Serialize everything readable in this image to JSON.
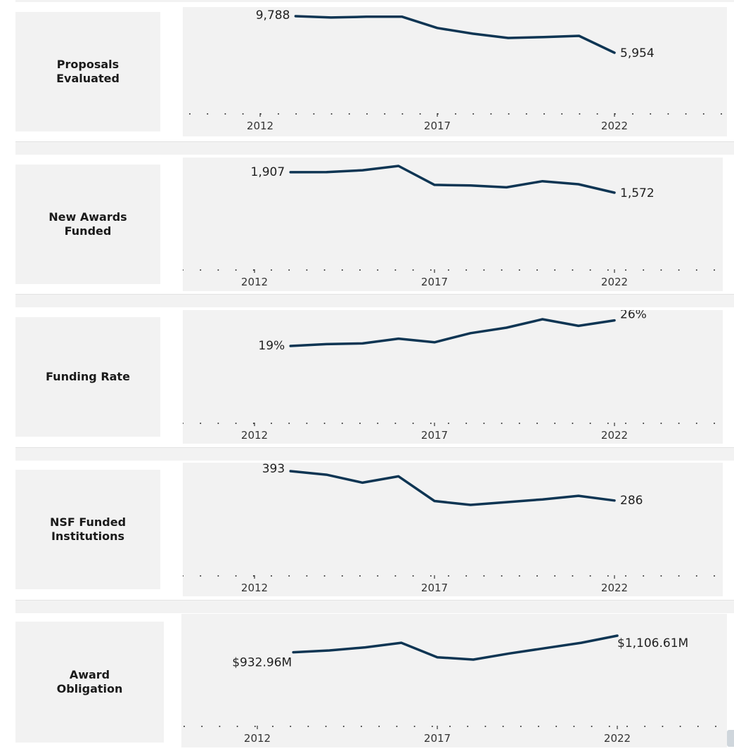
{
  "chart_data": [
    {
      "type": "line",
      "title": "Proposals Evaluated",
      "x": [
        2013,
        2014,
        2015,
        2016,
        2017,
        2018,
        2019,
        2020,
        2021,
        2022
      ],
      "values": [
        9788,
        9650,
        9730,
        9740,
        8550,
        7950,
        7500,
        7600,
        7720,
        5954
      ],
      "first_label": "9,788",
      "last_label": "5,954",
      "xticks": [
        "2012",
        "2017",
        "2022"
      ],
      "color": "#0e3553"
    },
    {
      "type": "line",
      "title": "New Awards Funded",
      "x": [
        2013,
        2014,
        2015,
        2016,
        2017,
        2018,
        2019,
        2020,
        2021,
        2022
      ],
      "values": [
        1907,
        1909,
        1940,
        2010,
        1700,
        1690,
        1660,
        1760,
        1710,
        1572
      ],
      "first_label": "1,907",
      "last_label": "1,572",
      "xticks": [
        "2012",
        "2017",
        "2022"
      ],
      "color": "#0e3553"
    },
    {
      "type": "line",
      "title": "Funding Rate",
      "x": [
        2013,
        2014,
        2015,
        2016,
        2017,
        2018,
        2019,
        2020,
        2021,
        2022
      ],
      "values": [
        19.0,
        19.5,
        19.7,
        21.0,
        20.0,
        22.5,
        24.0,
        26.3,
        24.5,
        26.0
      ],
      "first_label": "19%",
      "last_label": "26%",
      "xticks": [
        "2012",
        "2017",
        "2022"
      ],
      "color": "#0e3553"
    },
    {
      "type": "line",
      "title": "NSF Funded Institutions",
      "x": [
        2013,
        2014,
        2015,
        2016,
        2017,
        2018,
        2019,
        2020,
        2021,
        2022
      ],
      "values": [
        393,
        380,
        351,
        374,
        284,
        270,
        280,
        290,
        303,
        286
      ],
      "first_label": "393",
      "last_label": "286",
      "xticks": [
        "2012",
        "2017",
        "2022"
      ],
      "color": "#0e3553"
    },
    {
      "type": "line",
      "title": "Award Obligation",
      "x": [
        2013,
        2014,
        2015,
        2016,
        2017,
        2018,
        2019,
        2020,
        2021,
        2022
      ],
      "values": [
        932.96,
        952,
        984,
        1032,
        880,
        856,
        920,
        976,
        1032,
        1106.61
      ],
      "first_label": "$932.96M",
      "last_label": "$1,106.61M",
      "xticks": [
        "2012",
        "2017",
        "2022"
      ],
      "color": "#0e3553"
    }
  ]
}
